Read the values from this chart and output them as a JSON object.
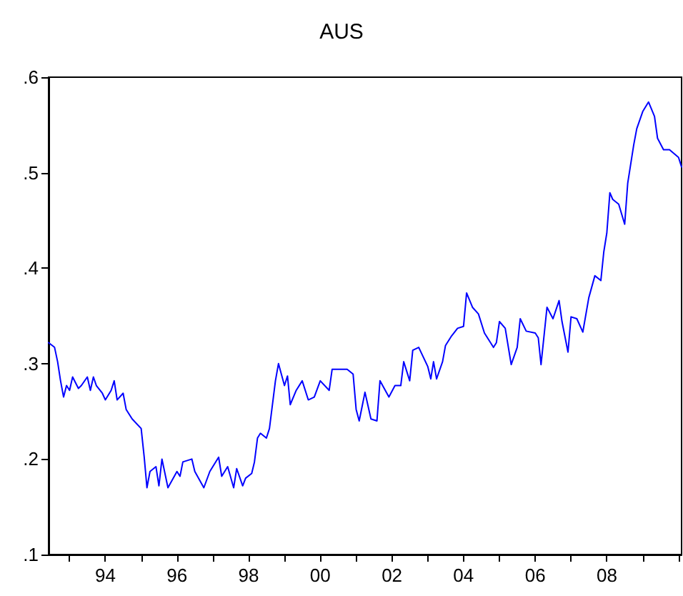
{
  "chart_data": {
    "type": "line",
    "title": "AUS",
    "x": [
      "1992-06",
      "1992-08",
      "1992-09",
      "1992-10",
      "1992-11",
      "1992-12",
      "1993-01",
      "1993-02",
      "1993-04",
      "1993-05",
      "1993-07",
      "1993-08",
      "1993-09",
      "1993-10",
      "1993-12",
      "1994-01",
      "1994-03",
      "1994-04",
      "1994-05",
      "1994-07",
      "1994-08",
      "1994-10",
      "1995-01",
      "1995-02",
      "1995-03",
      "1995-04",
      "1995-06",
      "1995-07",
      "1995-08",
      "1995-10",
      "1996-01",
      "1996-02",
      "1996-03",
      "1996-06",
      "1996-07",
      "1996-10",
      "1996-12",
      "1997-03",
      "1997-04",
      "1997-06",
      "1997-08",
      "1997-09",
      "1997-11",
      "1997-12",
      "1998-02",
      "1998-03",
      "1998-04",
      "1998-05",
      "1998-07",
      "1998-08",
      "1998-10",
      "1998-11",
      "1999-01",
      "1999-02",
      "1999-03",
      "1999-05",
      "1999-07",
      "1999-09",
      "1999-11",
      "2000-01",
      "2000-04",
      "2000-05",
      "2000-10",
      "2000-12",
      "2001-01",
      "2001-02",
      "2001-04",
      "2001-06",
      "2001-08",
      "2001-09",
      "2001-12",
      "2002-02",
      "2002-04",
      "2002-05",
      "2002-07",
      "2002-08",
      "2002-10",
      "2003-01",
      "2003-02",
      "2003-03",
      "2003-04",
      "2003-06",
      "2003-07",
      "2003-09",
      "2003-11",
      "2004-01",
      "2004-02",
      "2004-04",
      "2004-06",
      "2004-08",
      "2004-11",
      "2004-12",
      "2005-01",
      "2005-03",
      "2005-05",
      "2005-07",
      "2005-08",
      "2005-10",
      "2006-01",
      "2006-02",
      "2006-03",
      "2006-05",
      "2006-07",
      "2006-09",
      "2006-10",
      "2006-12",
      "2007-01",
      "2007-03",
      "2007-05",
      "2007-07",
      "2007-09",
      "2007-11",
      "2007-12",
      "2008-01",
      "2008-02",
      "2008-03",
      "2008-05",
      "2008-07",
      "2008-08",
      "2008-10",
      "2008-11",
      "2009-01",
      "2009-03",
      "2009-05",
      "2009-06",
      "2009-08",
      "2009-10",
      "2010-01",
      "2010-02"
    ],
    "values": [
      0.322,
      0.317,
      0.302,
      0.282,
      0.265,
      0.277,
      0.272,
      0.286,
      0.274,
      0.277,
      0.286,
      0.272,
      0.286,
      0.277,
      0.269,
      0.262,
      0.272,
      0.282,
      0.262,
      0.269,
      0.252,
      0.242,
      0.232,
      0.202,
      0.17,
      0.187,
      0.192,
      0.172,
      0.2,
      0.17,
      0.187,
      0.182,
      0.197,
      0.2,
      0.187,
      0.17,
      0.187,
      0.202,
      0.182,
      0.192,
      0.17,
      0.19,
      0.172,
      0.18,
      0.185,
      0.197,
      0.222,
      0.227,
      0.222,
      0.232,
      0.282,
      0.3,
      0.277,
      0.287,
      0.257,
      0.272,
      0.282,
      0.262,
      0.265,
      0.282,
      0.272,
      0.294,
      0.294,
      0.289,
      0.252,
      0.24,
      0.27,
      0.242,
      0.24,
      0.282,
      0.265,
      0.277,
      0.277,
      0.302,
      0.282,
      0.314,
      0.317,
      0.297,
      0.284,
      0.302,
      0.284,
      0.302,
      0.319,
      0.329,
      0.337,
      0.339,
      0.374,
      0.359,
      0.352,
      0.332,
      0.317,
      0.322,
      0.344,
      0.337,
      0.299,
      0.317,
      0.347,
      0.334,
      0.332,
      0.327,
      0.299,
      0.359,
      0.347,
      0.366,
      0.344,
      0.312,
      0.349,
      0.347,
      0.333,
      0.369,
      0.392,
      0.387,
      0.417,
      0.437,
      0.479,
      0.472,
      0.467,
      0.446,
      0.489,
      0.529,
      0.546,
      0.564,
      0.574,
      0.559,
      0.536,
      0.524,
      0.524,
      0.516,
      0.506
    ],
    "color": "#0000ff",
    "marker": "none",
    "line_style": "solid",
    "xlim": [
      "1992-06",
      "2010-02"
    ],
    "xticks": [
      {
        "value": "1993",
        "label": null
      },
      {
        "value": "1994",
        "label": "94"
      },
      {
        "value": "1995",
        "label": null
      },
      {
        "value": "1996",
        "label": "96"
      },
      {
        "value": "1997",
        "label": null
      },
      {
        "value": "1998",
        "label": "98"
      },
      {
        "value": "1999",
        "label": null
      },
      {
        "value": "2000",
        "label": "00"
      },
      {
        "value": "2001",
        "label": null
      },
      {
        "value": "2002",
        "label": "02"
      },
      {
        "value": "2003",
        "label": null
      },
      {
        "value": "2004",
        "label": "04"
      },
      {
        "value": "2005",
        "label": null
      },
      {
        "value": "2006",
        "label": "06"
      },
      {
        "value": "2007",
        "label": null
      },
      {
        "value": "2008",
        "label": "08"
      },
      {
        "value": "2009",
        "label": null
      },
      {
        "value": "2010",
        "label": null
      }
    ],
    "ylim": [
      0.1,
      0.6
    ],
    "yticks": [
      {
        "value": 0.1,
        "label": ".1"
      },
      {
        "value": 0.2,
        "label": ".2"
      },
      {
        "value": 0.3,
        "label": ".3"
      },
      {
        "value": 0.4,
        "label": ".4"
      },
      {
        "value": 0.5,
        "label": ".5"
      },
      {
        "value": 0.6,
        "label": ".6"
      }
    ]
  }
}
